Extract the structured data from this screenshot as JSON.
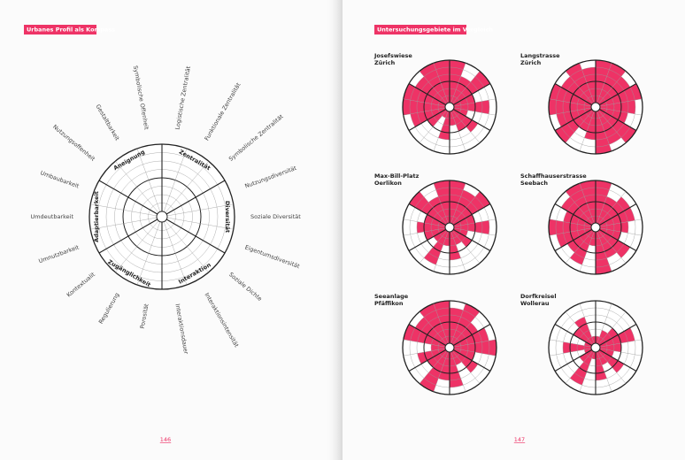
{
  "pages": [
    {
      "heading": "Urbanes Profil als Kompass",
      "number": "146"
    },
    {
      "heading": "Untersuchungsgebiete im Vergleich",
      "number": "147"
    }
  ],
  "chart_data": [
    {
      "type": "compass",
      "categories": [
        "Logistische Zentralität",
        "Funktionale Zentralität",
        "Symbolische Zentralität",
        "Nutzungsdiversität",
        "Soziale Diversität",
        "Eigentumsdiversität",
        "Soziale Dichte",
        "Interaktionsintensität",
        "Interaktionsdauer",
        "Porosität",
        "Regulierung",
        "Kontextualit",
        "Umnutzbarkeit",
        "Umdeutbarkeit",
        "Umbaubarkeit",
        "Nutzungsoffenheit",
        "Gestaltbarkeit",
        "Symbolische Offenheit"
      ],
      "groups": [
        "Zentralität",
        "Diversität",
        "Interaktion",
        "Zugänglichkeit",
        "Adaptierbarkeit",
        "Aneignung"
      ],
      "rlim": [
        0,
        8
      ],
      "rticks": [
        1,
        2,
        3,
        4,
        5,
        6,
        7,
        8
      ],
      "color": "#222222"
    },
    {
      "type": "polar-bar",
      "title": "Josefswiese",
      "subtitle": "Zürich",
      "values": [
        6,
        4,
        6,
        3,
        5,
        2,
        4,
        3,
        2,
        4,
        1,
        3,
        5,
        6,
        6,
        5,
        6,
        6
      ],
      "rlim": [
        0,
        6
      ],
      "rticks": [
        1,
        2,
        3,
        4,
        5,
        6
      ],
      "color": "#ee3366"
    },
    {
      "type": "polar-bar",
      "title": "Langstrasse",
      "subtitle": "Zürich",
      "values": [
        6,
        6,
        5,
        6,
        5,
        4,
        6,
        5,
        6,
        4,
        3,
        6,
        5,
        6,
        6,
        5,
        6,
        5
      ],
      "rlim": [
        0,
        6
      ],
      "rticks": [
        1,
        2,
        3,
        4,
        5,
        6
      ],
      "color": "#ee3366"
    },
    {
      "type": "polar-bar",
      "title": "Max-Bill-Platz",
      "subtitle": "Oerlikon",
      "values": [
        6,
        5,
        6,
        3,
        5,
        2,
        3,
        2,
        4,
        2,
        5,
        2,
        3,
        4,
        3,
        6,
        4,
        6
      ],
      "rlim": [
        0,
        6
      ],
      "rticks": [
        1,
        2,
        3,
        4,
        5,
        6
      ],
      "color": "#ee3366"
    },
    {
      "type": "polar-bar",
      "title": "Schaffhauserstrasse",
      "subtitle": "Seebach",
      "values": [
        6,
        4,
        5,
        5,
        4,
        3,
        5,
        4,
        6,
        2,
        5,
        4,
        5,
        6,
        4,
        5,
        6,
        6
      ],
      "rlim": [
        0,
        6
      ],
      "rticks": [
        1,
        2,
        3,
        4,
        5,
        6
      ],
      "color": "#ee3366"
    },
    {
      "type": "polar-bar",
      "title": "Seeanlage",
      "subtitle": "Pfäffikon",
      "values": [
        5,
        6,
        4,
        5,
        6,
        3,
        4,
        2,
        5,
        4,
        6,
        3,
        4,
        2,
        6,
        5,
        6,
        6
      ],
      "rlim": [
        0,
        6
      ],
      "rticks": [
        1,
        2,
        3,
        4,
        5,
        6
      ],
      "color": "#ee3366"
    },
    {
      "type": "polar-bar",
      "title": "Dorfkreisel",
      "subtitle": "Wollerau",
      "values": [
        1,
        2,
        3,
        5,
        3,
        2,
        4,
        2,
        4,
        1,
        5,
        2,
        1,
        4,
        1,
        3,
        4,
        1
      ],
      "rlim": [
        0,
        6
      ],
      "rticks": [
        1,
        2,
        3,
        4,
        5,
        6
      ],
      "color": "#ee3366"
    }
  ]
}
